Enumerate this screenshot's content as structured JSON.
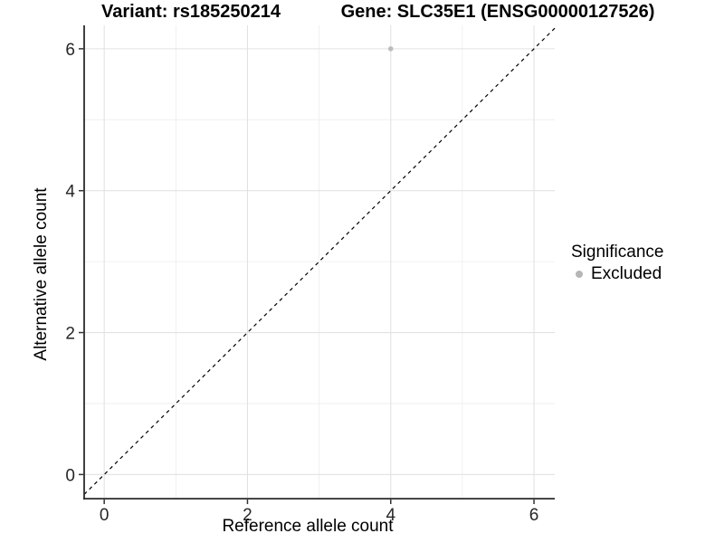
{
  "header": {
    "variant_title": "Variant: rs185250214",
    "gene_title": "Gene: SLC35E1 (ENSG00000127526)"
  },
  "chart_data": {
    "type": "scatter",
    "title": "Variant: rs185250214    Gene: SLC35E1 (ENSG00000127526)",
    "xlabel": "Reference allele count",
    "ylabel": "Alternative allele count",
    "xlim": [
      -0.28,
      6.29
    ],
    "ylim": [
      -0.34,
      6.33
    ],
    "x_major_ticks": [
      0,
      2,
      4,
      6
    ],
    "y_major_ticks": [
      0,
      2,
      4,
      6
    ],
    "x_minor_gridlines": [
      1,
      3,
      5
    ],
    "y_minor_gridlines": [
      1,
      3,
      5
    ],
    "grid": true,
    "reference_line": {
      "style": "dashed",
      "slope": 1,
      "intercept": 0
    },
    "series": [
      {
        "name": "Excluded",
        "color": "#bcbcbc",
        "points": [
          {
            "x": 4,
            "y": 6
          }
        ]
      }
    ],
    "legend": {
      "title": "Significance",
      "position": "right",
      "entries": [
        {
          "label": "Excluded",
          "color": "#b6b6b6"
        }
      ]
    },
    "colors": {
      "background": "#ffffff",
      "major_grid": "#e2e2e2",
      "minor_grid": "#ececec",
      "axis_line": "#2b2b2b",
      "tick_mark": "#333333",
      "tick_label": "#262626",
      "reference_line": "#000000"
    }
  }
}
